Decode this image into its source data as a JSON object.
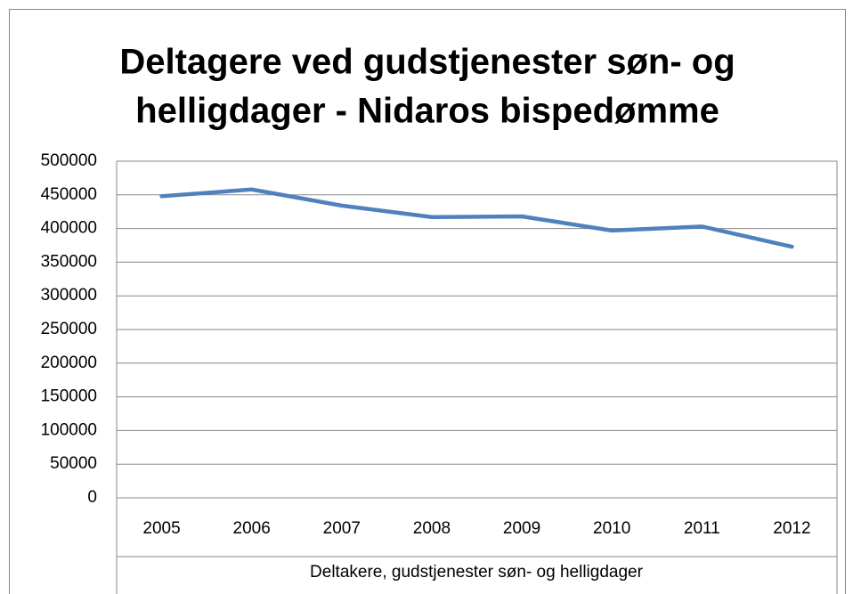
{
  "chart_data": {
    "type": "line",
    "title": [
      "Deltagere ved gudstjenester søn- og",
      "helligdager - Nidaros bispedømme"
    ],
    "x_label": "Deltakere, gudstjenester søn- og helligdager",
    "categories": [
      "2005",
      "2006",
      "2007",
      "2008",
      "2009",
      "2010",
      "2011",
      "2012"
    ],
    "series": [
      {
        "color": "#4f81bd",
        "values": [
          448000,
          458000,
          434000,
          417000,
          418000,
          397000,
          403000,
          373000
        ]
      }
    ],
    "ylim": [
      0,
      500000
    ],
    "yticks": [
      0,
      50000,
      100000,
      150000,
      200000,
      250000,
      300000,
      350000,
      400000,
      450000,
      500000
    ],
    "grid": true
  }
}
